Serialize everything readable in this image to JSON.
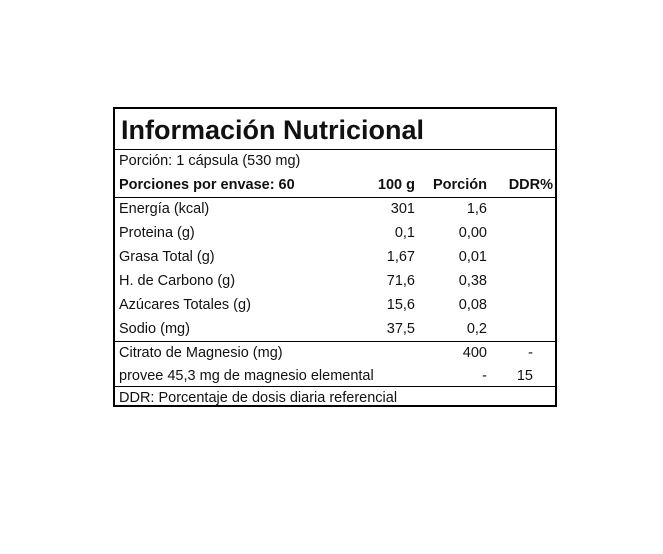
{
  "label": {
    "title": "Información Nutricional",
    "portion": "Porción: 1 cápsula (530 mg)",
    "header": {
      "servings": "Porciones por envase: 60",
      "col_100g": "100 g",
      "col_portion": "Porción",
      "col_ddr": "DDR%"
    },
    "nutrients": [
      {
        "name": "Energía (kcal)",
        "per100": "301",
        "portion": "1,6"
      },
      {
        "name": "Proteina (g)",
        "per100": "0,1",
        "portion": "0,00"
      },
      {
        "name": "Grasa Total (g)",
        "per100": "1,67",
        "portion": "0,01"
      },
      {
        "name": "H. de Carbono (g)",
        "per100": "71,6",
        "portion": "0,38"
      },
      {
        "name": "Azúcares Totales (g)",
        "per100": "15,6",
        "portion": "0,08"
      },
      {
        "name": "Sodio (mg)",
        "per100": "37,5",
        "portion": "0,2"
      }
    ],
    "minerals": [
      {
        "name": "Citrato de Magnesio (mg)",
        "portion": "400",
        "ddr": "-"
      },
      {
        "name": "provee 45,3 mg de magnesio elemental",
        "portion": "-",
        "ddr": "15"
      }
    ],
    "footer": "DDR: Porcentaje de dosis diaria referencial"
  }
}
